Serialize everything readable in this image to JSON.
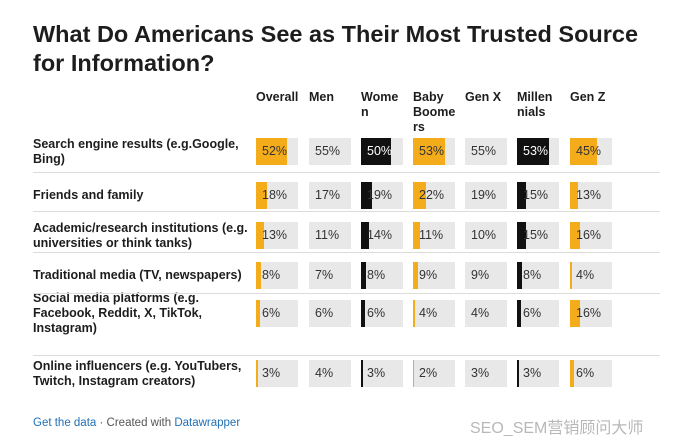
{
  "title": "What Do Americans See as Their Most Trusted Source for Information?",
  "footer": {
    "get_data": "Get the data",
    "separator": "·",
    "created_with": "Created with",
    "tool": "Datawrapper"
  },
  "watermark": "SEO_SEM营销顾问大师",
  "colors": {
    "orange": "#f5ac1a",
    "black": "#111111",
    "track": "#e8e8e8"
  },
  "chart_data": {
    "type": "table",
    "columns": [
      {
        "label": "Overall",
        "lines": [
          "Overall"
        ],
        "color": "#f5ac1a"
      },
      {
        "label": "Men",
        "lines": [
          "Men"
        ],
        "color": "#e8e8e8"
      },
      {
        "label": "Women",
        "lines": [
          "Wome",
          "n"
        ],
        "color": "#111111"
      },
      {
        "label": "Baby Boomers",
        "lines": [
          "Baby",
          "Boome",
          "rs"
        ],
        "color": "#f5ac1a"
      },
      {
        "label": "Gen X",
        "lines": [
          "Gen X"
        ],
        "color": "#e8e8e8"
      },
      {
        "label": "Millennials",
        "lines": [
          "Millen",
          "nials"
        ],
        "color": "#111111"
      },
      {
        "label": "Gen Z",
        "lines": [
          "Gen Z"
        ],
        "color": "#f5ac1a"
      }
    ],
    "rows": [
      {
        "label": "Search engine results (e.g.Google, Bing)",
        "lines": [
          "Search engine results (e.g.Google,",
          "Bing)"
        ],
        "values": [
          52,
          55,
          50,
          53,
          55,
          53,
          45
        ],
        "labels": [
          "52%",
          "55%",
          "50%",
          "53%",
          "55%",
          "53%",
          "45%"
        ]
      },
      {
        "label": "Friends and family",
        "lines": [
          "Friends and family"
        ],
        "values": [
          18,
          17,
          19,
          22,
          19,
          15,
          13
        ],
        "labels": [
          "18%",
          "17%",
          "19%",
          "22%",
          "19%",
          "15%",
          "13%"
        ]
      },
      {
        "label": "Academic/research institutions (e.g. universities or think tanks)",
        "lines": [
          "Academic/research institutions (e.g.",
          "universities or think tanks)"
        ],
        "values": [
          13,
          11,
          14,
          11,
          10,
          15,
          16
        ],
        "labels": [
          "13%",
          "11%",
          "14%",
          "11%",
          "10%",
          "15%",
          "16%"
        ]
      },
      {
        "label": "Traditional media (TV, newspapers)",
        "lines": [
          "Traditional media (TV, newspapers)"
        ],
        "values": [
          8,
          7,
          8,
          9,
          9,
          8,
          4
        ],
        "labels": [
          "8%",
          "7%",
          "8%",
          "9%",
          "9%",
          "8%",
          "4%"
        ]
      },
      {
        "label": "Social media platforms (e.g. Facebook, Reddit, X, TikTok, Instagram)",
        "lines": [
          "Social media platforms (e.g.",
          "Facebook, Reddit, X, TikTok,",
          "Instagram)"
        ],
        "values": [
          6,
          6,
          6,
          4,
          4,
          6,
          16
        ],
        "labels": [
          "6%",
          "6%",
          "6%",
          "4%",
          "4%",
          "6%",
          "16%"
        ]
      },
      {
        "label": "Online influencers (e.g. YouTubers, Twitch, Instagram creators)",
        "lines": [
          "Online influencers (e.g. YouTubers,",
          "Twitch, Instagram creators)"
        ],
        "values": [
          3,
          4,
          3,
          2,
          3,
          3,
          6
        ],
        "labels": [
          "3%",
          "4%",
          "3%",
          "2%",
          "3%",
          "3%",
          "6%"
        ]
      }
    ],
    "max_value": 55
  }
}
